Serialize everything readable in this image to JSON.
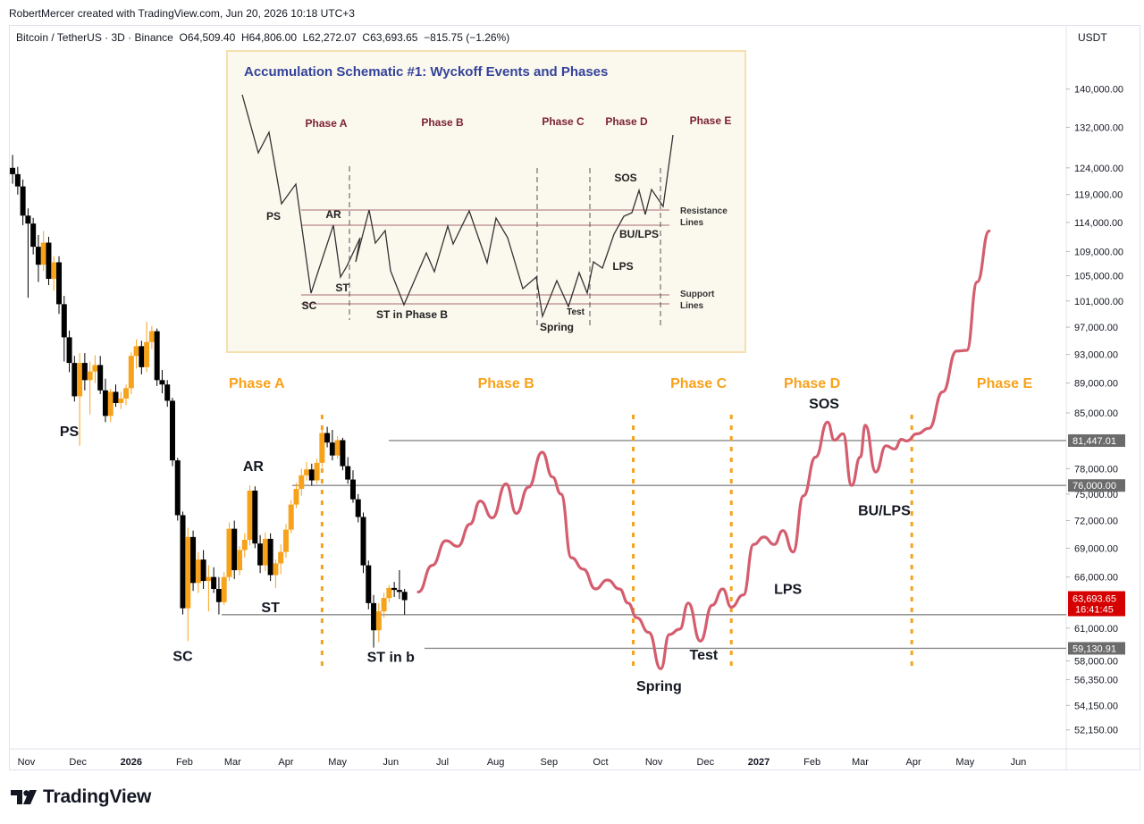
{
  "header": {
    "credit": "RobertMercer created with TradingView.com, Jun 20, 2026 10:18 UTC+3",
    "symbol": "Bitcoin / TetherUS · 3D · Binance",
    "open_label": "O",
    "open": "64,509.40",
    "high_label": "H",
    "high": "64,806.00",
    "low_label": "L",
    "low": "62,272.07",
    "close_label": "C",
    "close": "63,693.65",
    "change": "−815.75 (−1.26%)",
    "currency": "USDT"
  },
  "brand": {
    "name": "TradingView"
  },
  "colors": {
    "up": "#f7a21b",
    "down": "#000000",
    "projection": "#d45d6e",
    "phase_text": "#f7a21b",
    "level_line": "#8a8a8a",
    "price_badge": "#d50000",
    "level_badge": "#6b6b6b",
    "inset_bg": "#fbf8ee",
    "inset_border": "#f6dfae",
    "inset_title": "#34439a",
    "inset_phase": "#7b2332"
  },
  "chart_data": {
    "type": "candlestick",
    "y_scale": "log",
    "ylim": [
      50500,
      152000
    ],
    "price_axis_ticks": [
      "140,000.00",
      "132,000.00",
      "124,000.00",
      "119,000.00",
      "114,000.00",
      "109,000.00",
      "105,000.00",
      "101,000.00",
      "97,000.00",
      "93,000.00",
      "89,000.00",
      "85,000.00",
      "78,000.00",
      "75,000.00",
      "72,000.00",
      "69,000.00",
      "66,000.00",
      "61,000.00",
      "58,000.00",
      "56,350.00",
      "54,150.00",
      "52,150.00"
    ],
    "time_axis_labels": [
      "Nov",
      "Dec",
      "2026",
      "Feb",
      "Mar",
      "Apr",
      "May",
      "Jun",
      "Jul",
      "Aug",
      "Sep",
      "Oct",
      "Nov",
      "Dec",
      "2027",
      "Feb",
      "Mar",
      "Apr",
      "May",
      "Jun"
    ],
    "bold_time_labels": [
      "2026",
      "2027"
    ],
    "levels": [
      {
        "label": "81,447.01",
        "value": 81447
      },
      {
        "label": "76,000.00",
        "value": 76000
      },
      {
        "label": "59,130.91",
        "value": 59131
      }
    ],
    "current_price": {
      "label": "63,693.65",
      "countdown": "16:41:45",
      "value": 63693.65
    },
    "support_level": 62280,
    "candles": [
      [
        "2025-10-24",
        124000,
        126500,
        121000,
        122800
      ],
      [
        "2025-10-27",
        122800,
        124200,
        119000,
        120500
      ],
      [
        "2025-10-30",
        120500,
        121800,
        113500,
        115200
      ],
      [
        "2025-11-02",
        115200,
        116500,
        101500,
        113800
      ],
      [
        "2025-11-05",
        113800,
        114800,
        108500,
        109800
      ],
      [
        "2025-11-08",
        109800,
        111800,
        104000,
        106800
      ],
      [
        "2025-11-11",
        106800,
        112500,
        105800,
        110500
      ],
      [
        "2025-11-14",
        110500,
        111500,
        103500,
        104500
      ],
      [
        "2025-11-17",
        104500,
        108200,
        102600,
        107200
      ],
      [
        "2025-11-20",
        107200,
        108200,
        99000,
        100500
      ],
      [
        "2025-11-23",
        100500,
        101800,
        92000,
        95500
      ],
      [
        "2025-11-26",
        95500,
        96500,
        90500,
        91800
      ],
      [
        "2025-11-29",
        91800,
        92800,
        86500,
        87200
      ],
      [
        "2025-12-02",
        87200,
        93200,
        80800,
        91800
      ],
      [
        "2025-12-05",
        91800,
        93200,
        88000,
        89400
      ],
      [
        "2025-12-08",
        89400,
        92000,
        84800,
        90600
      ],
      [
        "2025-12-11",
        90600,
        92900,
        89000,
        91500
      ],
      [
        "2025-12-14",
        91500,
        92800,
        87500,
        88000
      ],
      [
        "2025-12-17",
        88000,
        89600,
        83800,
        84600
      ],
      [
        "2025-12-20",
        84600,
        88200,
        83800,
        87800
      ],
      [
        "2025-12-23",
        87800,
        88800,
        85800,
        86300
      ],
      [
        "2025-12-26",
        86300,
        87800,
        85500,
        86900
      ],
      [
        "2025-12-29",
        86900,
        88800,
        86000,
        88300
      ],
      [
        "2026-01-01",
        88300,
        93300,
        87500,
        92800
      ],
      [
        "2026-01-04",
        92800,
        95200,
        91000,
        94200
      ],
      [
        "2026-01-07",
        94200,
        95000,
        90200,
        91200
      ],
      [
        "2026-01-10",
        91200,
        97800,
        90500,
        94800
      ],
      [
        "2026-01-13",
        94800,
        97200,
        93800,
        96400
      ],
      [
        "2026-01-16",
        96400,
        96800,
        88600,
        89400
      ],
      [
        "2026-01-19",
        89400,
        90800,
        87600,
        88800
      ],
      [
        "2026-01-22",
        88800,
        89400,
        85800,
        86600
      ],
      [
        "2026-01-25",
        86600,
        87000,
        78300,
        79000
      ],
      [
        "2026-01-28",
        79000,
        79300,
        72000,
        72600
      ],
      [
        "2026-01-31",
        72600,
        73000,
        62300,
        62900
      ],
      [
        "2026-02-03",
        62900,
        71200,
        59800,
        70200
      ],
      [
        "2026-02-06",
        70200,
        70900,
        64600,
        65400
      ],
      [
        "2026-02-09",
        65400,
        68600,
        64400,
        67800
      ],
      [
        "2026-02-12",
        67800,
        68800,
        64800,
        65600
      ],
      [
        "2026-02-15",
        65600,
        67200,
        62600,
        66000
      ],
      [
        "2026-02-18",
        66000,
        67000,
        64400,
        64800
      ],
      [
        "2026-02-21",
        64800,
        66000,
        62300,
        63500
      ],
      [
        "2026-02-24",
        63500,
        66500,
        63200,
        66000
      ],
      [
        "2026-02-27",
        66000,
        71800,
        65600,
        71100
      ],
      [
        "2026-03-02",
        71100,
        72000,
        65800,
        66700
      ],
      [
        "2026-03-05",
        66700,
        69200,
        66200,
        68800
      ],
      [
        "2026-03-08",
        68800,
        70600,
        68000,
        69900
      ],
      [
        "2026-03-11",
        69900,
        76000,
        69300,
        75400
      ],
      [
        "2026-03-14",
        75400,
        75900,
        69000,
        69500
      ],
      [
        "2026-03-17",
        69500,
        70400,
        66400,
        67200
      ],
      [
        "2026-03-20",
        67200,
        70700,
        66600,
        70000
      ],
      [
        "2026-03-23",
        70000,
        70600,
        65600,
        66200
      ],
      [
        "2026-03-26",
        66200,
        67800,
        64900,
        67400
      ],
      [
        "2026-03-29",
        67400,
        69400,
        66300,
        68600
      ],
      [
        "2026-04-01",
        68600,
        71600,
        68000,
        71000
      ],
      [
        "2026-04-04",
        71000,
        74300,
        70600,
        73800
      ],
      [
        "2026-04-07",
        73800,
        76300,
        73400,
        75600
      ],
      [
        "2026-04-10",
        75600,
        78000,
        74800,
        77200
      ],
      [
        "2026-04-13",
        77200,
        78800,
        76600,
        77900
      ],
      [
        "2026-04-16",
        77900,
        78600,
        76000,
        76600
      ],
      [
        "2026-04-19",
        76600,
        79200,
        76200,
        78700
      ],
      [
        "2026-04-22",
        78700,
        83000,
        78200,
        82400
      ],
      [
        "2026-04-25",
        82400,
        83200,
        80600,
        81200
      ],
      [
        "2026-04-28",
        81200,
        82800,
        79000,
        79600
      ],
      [
        "2026-05-01",
        79600,
        82000,
        79200,
        81500
      ],
      [
        "2026-05-04",
        81500,
        81800,
        77800,
        78300
      ],
      [
        "2026-05-07",
        78300,
        79400,
        76200,
        76700
      ],
      [
        "2026-05-10",
        76700,
        77800,
        74000,
        74400
      ],
      [
        "2026-05-13",
        74400,
        75000,
        71800,
        72400
      ],
      [
        "2026-05-16",
        72400,
        72900,
        66400,
        67200
      ],
      [
        "2026-05-19",
        67200,
        67700,
        62800,
        63400
      ],
      [
        "2026-05-22",
        63400,
        64200,
        59200,
        60800
      ],
      [
        "2026-05-25",
        60800,
        63400,
        59700,
        62600
      ],
      [
        "2026-05-28",
        62600,
        64400,
        62000,
        63900
      ],
      [
        "2026-05-31",
        63900,
        65200,
        63500,
        64900
      ],
      [
        "2026-06-03",
        64900,
        65500,
        64000,
        64700
      ],
      [
        "2026-06-06",
        64700,
        66700,
        63800,
        64500
      ],
      [
        "2026-06-09",
        64509.4,
        64806,
        62272.07,
        63693.65
      ]
    ],
    "projection": [
      [
        "2026-06-17",
        64500
      ],
      [
        "2026-06-25",
        67200
      ],
      [
        "2026-07-03",
        69800
      ],
      [
        "2026-07-10",
        69200
      ],
      [
        "2026-07-17",
        71600
      ],
      [
        "2026-07-23",
        74200
      ],
      [
        "2026-07-30",
        72300
      ],
      [
        "2026-08-07",
        76200
      ],
      [
        "2026-08-13",
        72800
      ],
      [
        "2026-08-20",
        75800
      ],
      [
        "2026-08-28",
        80000
      ],
      [
        "2026-09-03",
        77000
      ],
      [
        "2026-09-08",
        75000
      ],
      [
        "2026-09-14",
        68000
      ],
      [
        "2026-09-21",
        66800
      ],
      [
        "2026-09-28",
        64800
      ],
      [
        "2026-10-05",
        65700
      ],
      [
        "2026-10-12",
        64800
      ],
      [
        "2026-10-17",
        63400
      ],
      [
        "2026-10-22",
        62000
      ],
      [
        "2026-10-29",
        60600
      ],
      [
        "2026-11-05",
        57300
      ],
      [
        "2026-11-10",
        60400
      ],
      [
        "2026-11-16",
        60900
      ],
      [
        "2026-11-21",
        63400
      ],
      [
        "2026-11-28",
        59800
      ],
      [
        "2026-12-05",
        63200
      ],
      [
        "2026-12-11",
        64800
      ],
      [
        "2026-12-16",
        63000
      ],
      [
        "2026-12-23",
        64200
      ],
      [
        "2026-12-29",
        69400
      ],
      [
        "2027-01-04",
        70200
      ],
      [
        "2027-01-10",
        69400
      ],
      [
        "2027-01-15",
        70900
      ],
      [
        "2027-01-21",
        68600
      ],
      [
        "2027-01-27",
        74800
      ],
      [
        "2027-02-03",
        79400
      ],
      [
        "2027-02-10",
        83800
      ],
      [
        "2027-02-14",
        81500
      ],
      [
        "2027-02-19",
        82300
      ],
      [
        "2027-02-24",
        76000
      ],
      [
        "2027-03-01",
        79400
      ],
      [
        "2027-03-04",
        83400
      ],
      [
        "2027-03-10",
        77600
      ],
      [
        "2027-03-16",
        80800
      ],
      [
        "2027-03-21",
        80400
      ],
      [
        "2027-03-25",
        81600
      ],
      [
        "2027-03-28",
        81400
      ],
      [
        "2027-04-03",
        82300
      ],
      [
        "2027-04-10",
        83000
      ],
      [
        "2027-04-18",
        87800
      ],
      [
        "2027-04-26",
        93500
      ],
      [
        "2027-05-02",
        93600
      ],
      [
        "2027-05-08",
        104000
      ],
      [
        "2027-05-15",
        112500
      ]
    ],
    "phase_labels": [
      {
        "text": "Phase A",
        "at": "2026-03-15"
      },
      {
        "text": "Phase B",
        "at": "2026-08-07"
      },
      {
        "text": "Phase C",
        "at": "2026-11-27"
      },
      {
        "text": "Phase D",
        "at": "2027-02-01"
      },
      {
        "text": "Phase E",
        "at": "2027-05-24"
      }
    ],
    "phase_dividers": [
      "2026-04-22",
      "2026-10-20",
      "2026-12-16",
      "2027-03-31"
    ],
    "event_labels": [
      {
        "text": "PS",
        "at": "2025-11-26",
        "price": 82000
      },
      {
        "text": "SC",
        "at": "2026-01-31",
        "price": 58000
      },
      {
        "text": "AR",
        "at": "2026-03-13",
        "price": 77700
      },
      {
        "text": "ST",
        "at": "2026-03-23",
        "price": 62500
      },
      {
        "text": "ST in b",
        "at": "2026-06-01",
        "price": 57900
      },
      {
        "text": "Spring",
        "at": "2026-11-04",
        "price": 55400
      },
      {
        "text": "Test",
        "at": "2026-11-30",
        "price": 58100
      },
      {
        "text": "LPS",
        "at": "2027-01-18",
        "price": 64300
      },
      {
        "text": "SOS",
        "at": "2027-02-08",
        "price": 85600
      },
      {
        "text": "BU/LPS",
        "at": "2027-03-15",
        "price": 72600
      }
    ]
  },
  "inset": {
    "title": "Accumulation Schematic #1: Wyckoff Events and Phases",
    "phases": [
      "Phase A",
      "Phase B",
      "Phase C",
      "Phase D",
      "Phase E"
    ],
    "events": [
      "PS",
      "AR",
      "ST",
      "SC",
      "ST in Phase B",
      "Spring",
      "Test",
      "SOS",
      "BU/LPS",
      "LPS"
    ],
    "resistance_label": [
      "Resistance",
      "Lines"
    ],
    "support_label": [
      "Support",
      "Lines"
    ]
  }
}
